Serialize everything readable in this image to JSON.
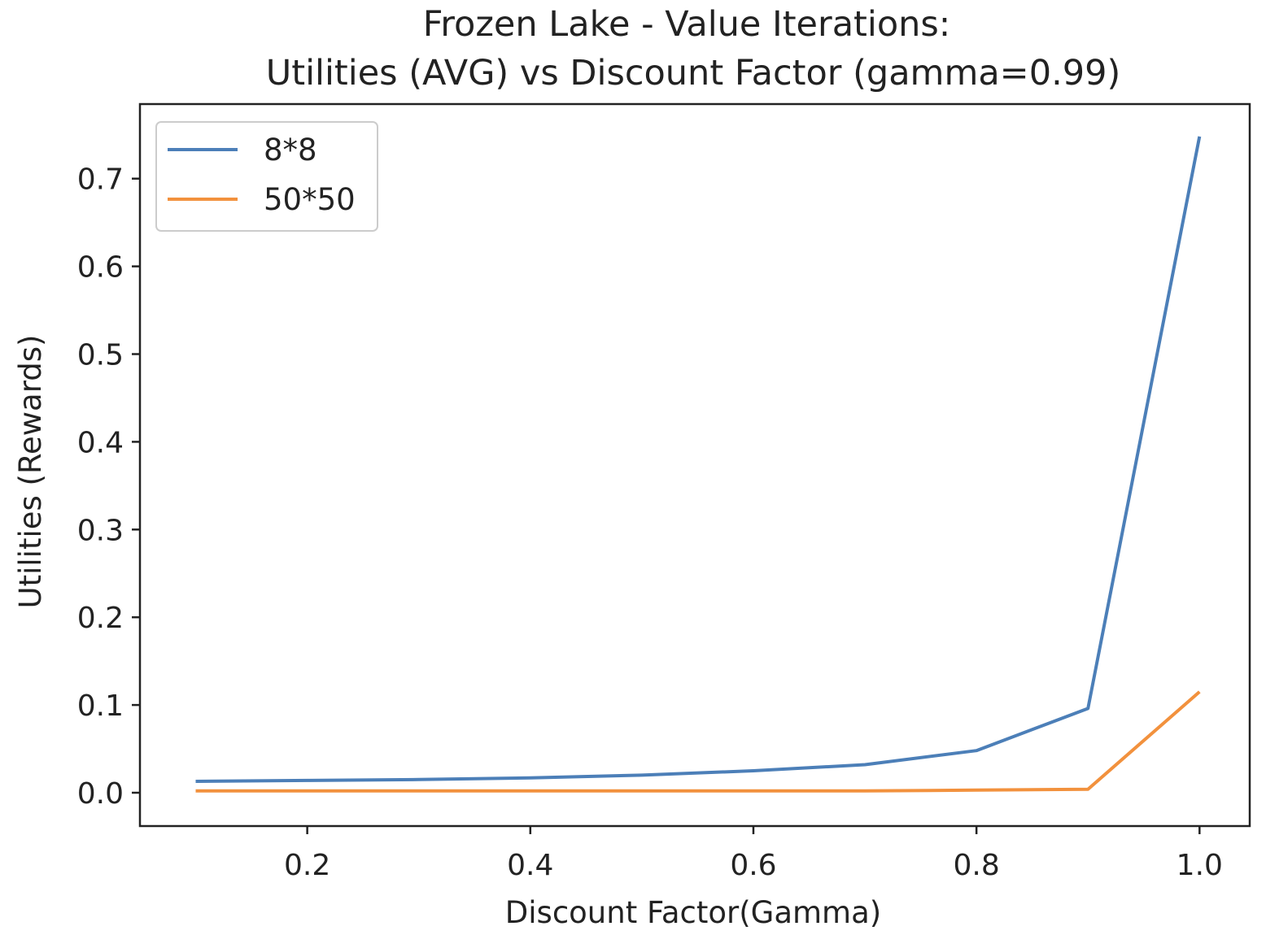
{
  "chart_data": {
    "type": "line",
    "title_line1": "Frozen Lake - Value Iterations:",
    "title_line2": "Utilities (AVG) vs Discount Factor (gamma=0.99)",
    "xlabel": "Discount Factor(Gamma)",
    "ylabel": "Utilities (Rewards)",
    "xlim": [
      0.05,
      1.045
    ],
    "ylim": [
      -0.038,
      0.785
    ],
    "xticks": [
      0.2,
      0.4,
      0.6,
      0.8,
      1.0
    ],
    "xtick_labels": [
      "0.2",
      "0.4",
      "0.6",
      "0.8",
      "1.0"
    ],
    "yticks": [
      0.0,
      0.1,
      0.2,
      0.3,
      0.4,
      0.5,
      0.6,
      0.7
    ],
    "ytick_labels": [
      "0.0",
      "0.1",
      "0.2",
      "0.3",
      "0.4",
      "0.5",
      "0.6",
      "0.7"
    ],
    "grid": false,
    "legend_position": "top-left",
    "x": [
      0.1,
      0.2,
      0.3,
      0.4,
      0.5,
      0.6,
      0.7,
      0.8,
      0.9,
      1.0
    ],
    "series": [
      {
        "name": "8*8",
        "color": "#4C7FB8",
        "values": [
          0.013,
          0.014,
          0.015,
          0.017,
          0.02,
          0.025,
          0.032,
          0.048,
          0.096,
          0.748
        ]
      },
      {
        "name": "50*50",
        "color": "#F2913D",
        "values": [
          0.002,
          0.002,
          0.002,
          0.002,
          0.002,
          0.002,
          0.002,
          0.003,
          0.004,
          0.115
        ]
      }
    ]
  }
}
